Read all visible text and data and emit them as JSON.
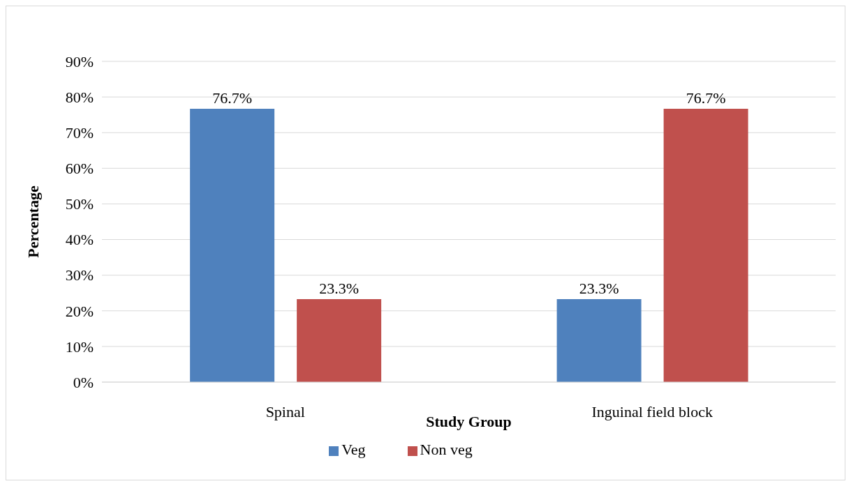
{
  "chart_data": {
    "type": "bar",
    "xlabel": "Study Group",
    "ylabel": "Percentage",
    "categories": [
      "Spinal",
      "Inguinal field block"
    ],
    "series": [
      {
        "name": "Veg",
        "color": "#4f81bd",
        "values": [
          76.7,
          23.3
        ],
        "value_labels": [
          "76.7%",
          "23.3%"
        ]
      },
      {
        "name": "Non veg",
        "color": "#c0504d",
        "values": [
          23.3,
          76.7
        ],
        "value_labels": [
          "23.3%",
          "76.7%"
        ]
      }
    ],
    "ylim": [
      0,
      90
    ],
    "yticks": [
      {
        "value": 0,
        "label": "0%"
      },
      {
        "value": 10,
        "label": "10%"
      },
      {
        "value": 20,
        "label": "20%"
      },
      {
        "value": 30,
        "label": "30%"
      },
      {
        "value": 40,
        "label": "40%"
      },
      {
        "value": 50,
        "label": "50%"
      },
      {
        "value": 60,
        "label": "60%"
      },
      {
        "value": 70,
        "label": "70%"
      },
      {
        "value": 80,
        "label": "80%"
      },
      {
        "value": 90,
        "label": "90%"
      }
    ],
    "grid": "y",
    "legend": "bottom"
  }
}
